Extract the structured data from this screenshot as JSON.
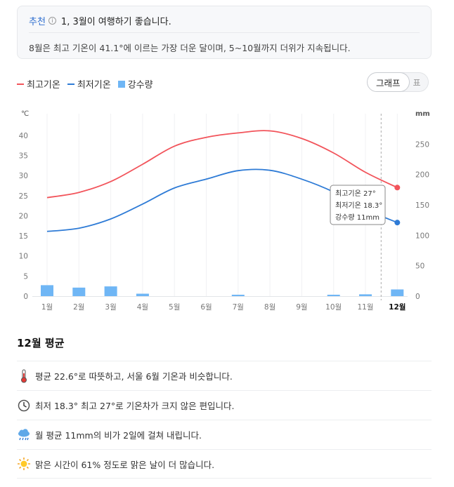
{
  "recommendation": {
    "label": "추천",
    "info_icon": "i",
    "title": "1, 3월이 여행하기 좋습니다.",
    "description": "8월은 최고 기온이 41.1°에 이르는 가장 더운 달이며, 5~10월까지 더위가 지속됩니다."
  },
  "legend": [
    {
      "label": "최고기온",
      "color": "#f2545b",
      "kind": "line"
    },
    {
      "label": "최저기온",
      "color": "#2e7bd6",
      "kind": "line"
    },
    {
      "label": "강수량",
      "color": "#6fb6f5",
      "kind": "box"
    }
  ],
  "view_toggle": {
    "graph": "그래프",
    "table": "표"
  },
  "chart_data": {
    "type": "line",
    "categories": [
      "1월",
      "2월",
      "3월",
      "4월",
      "5월",
      "6월",
      "7월",
      "8월",
      "9월",
      "10월",
      "11월",
      "12월"
    ],
    "series": [
      {
        "name": "최고기온",
        "axis": "left",
        "color": "#f2545b",
        "values": [
          24.5,
          25.8,
          28.5,
          32.8,
          37.3,
          39.5,
          40.6,
          41.1,
          39.2,
          35.6,
          30.8,
          27.0
        ]
      },
      {
        "name": "최저기온",
        "axis": "left",
        "color": "#2e7bd6",
        "values": [
          16.1,
          16.9,
          19.2,
          22.9,
          26.9,
          29.1,
          31.2,
          31.3,
          29.1,
          25.9,
          21.6,
          18.3
        ]
      },
      {
        "name": "강수량",
        "axis": "right",
        "type": "bar",
        "color": "#6fb6f5",
        "values": [
          18,
          14,
          16,
          4,
          0,
          0,
          1,
          0,
          0,
          0.5,
          3,
          11
        ]
      }
    ],
    "y_left": {
      "unit": "℃",
      "ticks": [
        0,
        5,
        10,
        15,
        20,
        25,
        30,
        35,
        40
      ],
      "range": [
        0,
        45
      ]
    },
    "y_right": {
      "unit": "mm",
      "ticks": [
        0,
        50,
        100,
        150,
        200,
        250
      ],
      "range": [
        0,
        300
      ]
    },
    "selected_index": 11,
    "tooltip": [
      "최고기온 27°",
      "최저기온 18.3°",
      "강수량 11mm"
    ],
    "grid": true
  },
  "month_summary": {
    "title": "12월 평균",
    "facts": [
      {
        "icon": "thermometer-icon",
        "text": "평균 22.6°로 따뜻하고, 서울 6월 기온과 비슷합니다."
      },
      {
        "icon": "clock-icon",
        "text": "최저 18.3° 최고 27°로 기온차가 크지 않은 편입니다."
      },
      {
        "icon": "rain-cloud-icon",
        "text": "월 평균 11mm의 비가 2일에 걸쳐 내립니다."
      },
      {
        "icon": "sun-icon",
        "text": "맑은 시간이 61% 정도로 맑은 날이 더 많습니다."
      }
    ]
  }
}
